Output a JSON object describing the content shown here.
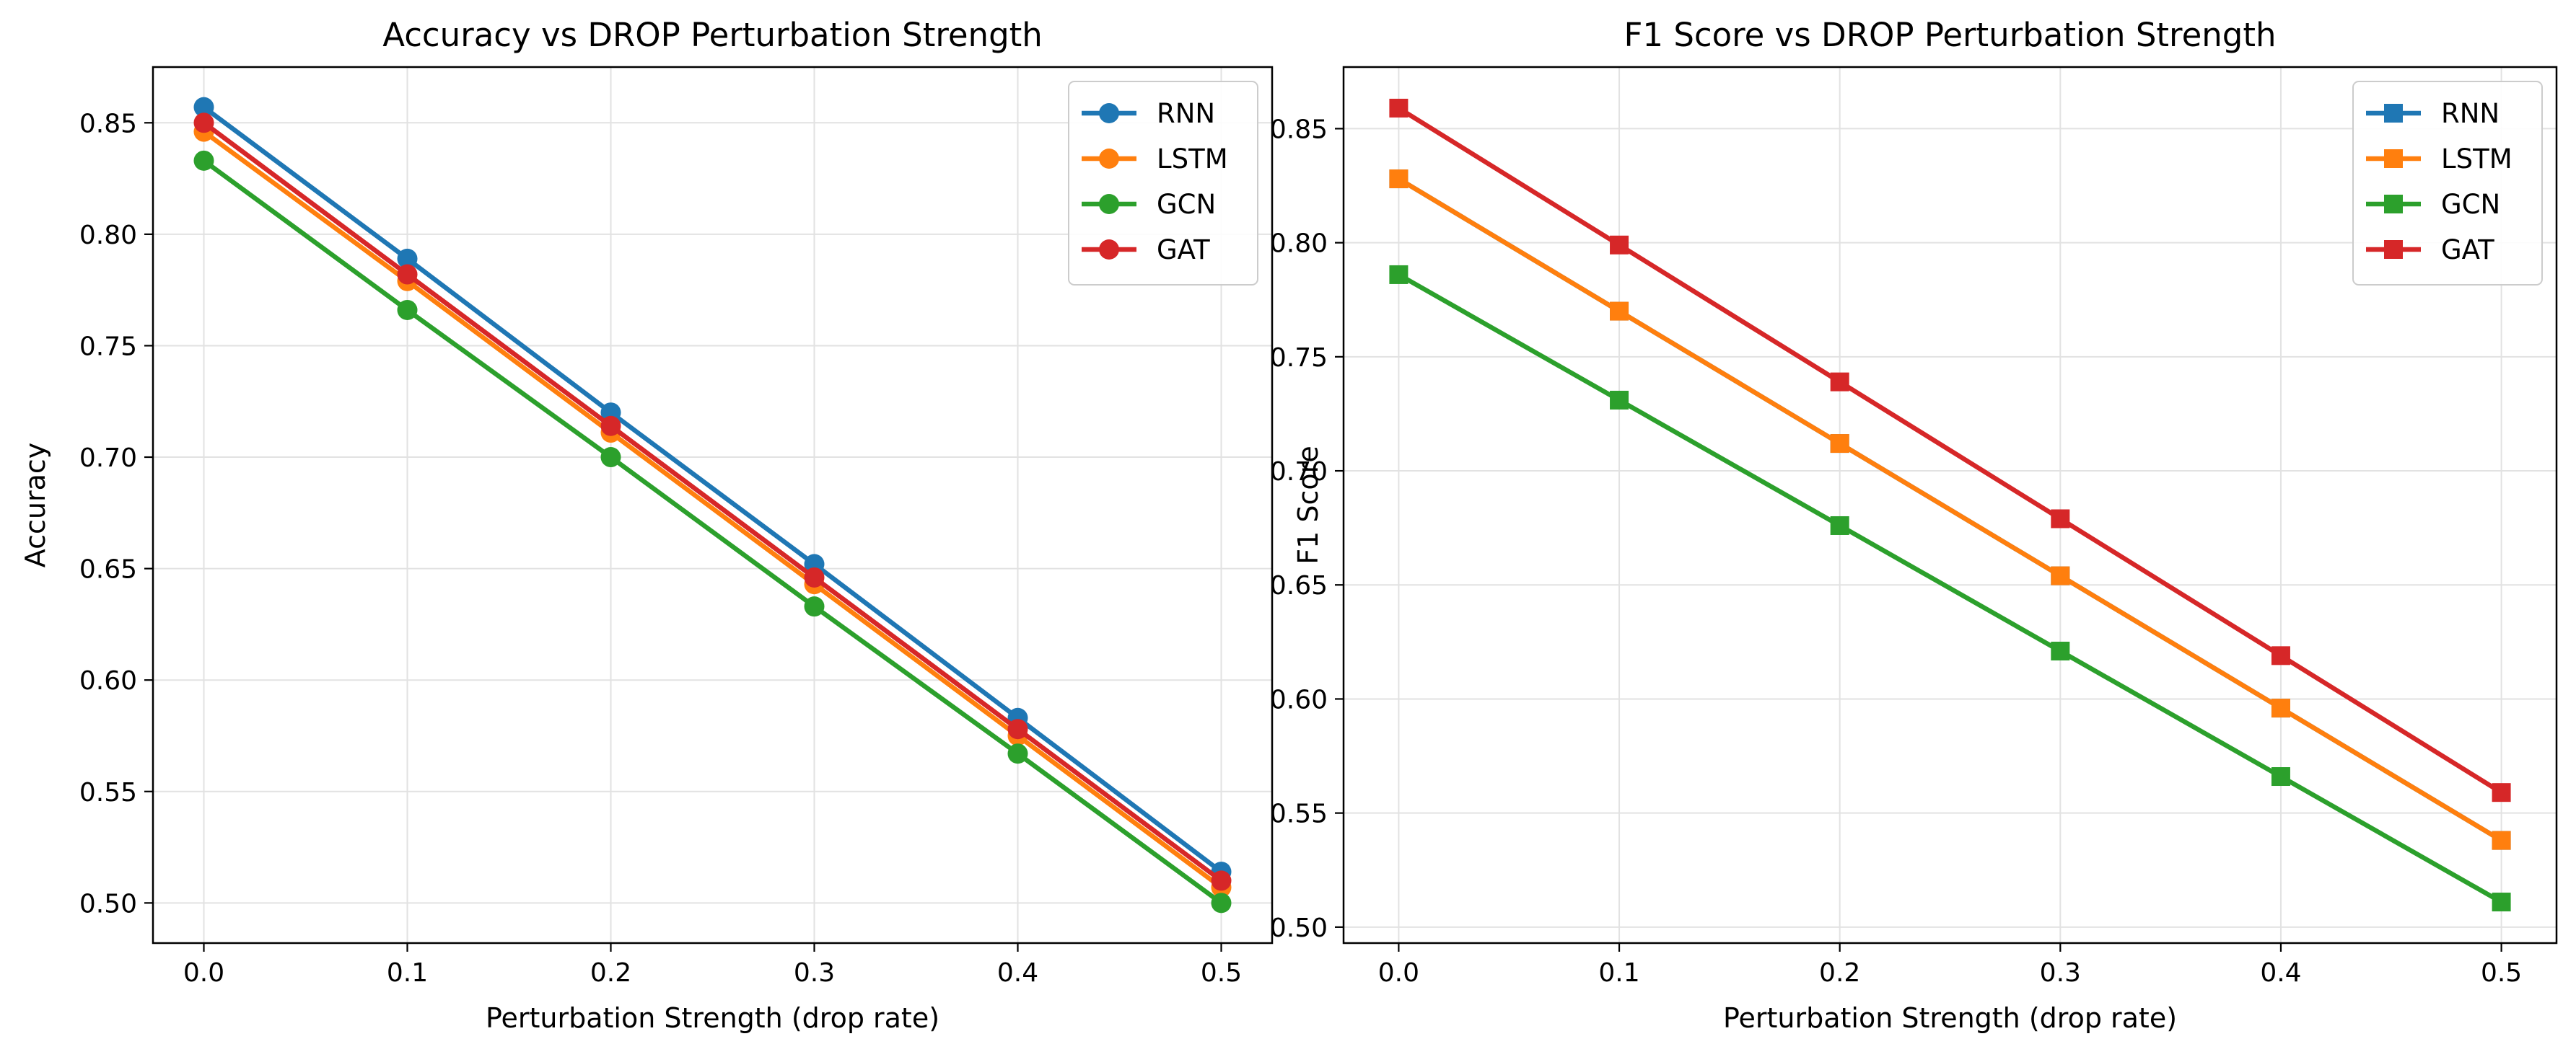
{
  "chart_data": [
    {
      "type": "line",
      "title": "Accuracy vs DROP Perturbation Strength",
      "xlabel": "Perturbation Strength (drop rate)",
      "ylabel": "Accuracy",
      "x": [
        0.0,
        0.1,
        0.2,
        0.3,
        0.4,
        0.5
      ],
      "xticks": [
        "0.0",
        "0.1",
        "0.2",
        "0.3",
        "0.4",
        "0.5"
      ],
      "yticks": [
        "0.50",
        "0.55",
        "0.60",
        "0.65",
        "0.70",
        "0.75",
        "0.80",
        "0.85"
      ],
      "xlim": [
        -0.025,
        0.525
      ],
      "ylim": [
        0.482,
        0.875
      ],
      "grid": true,
      "legend_position": "top-right",
      "marker": "circle",
      "series": [
        {
          "name": "RNN",
          "color": "#1f77b4",
          "values": [
            0.857,
            0.789,
            0.72,
            0.652,
            0.583,
            0.514
          ]
        },
        {
          "name": "LSTM",
          "color": "#ff7f0e",
          "values": [
            0.846,
            0.779,
            0.711,
            0.643,
            0.575,
            0.507
          ]
        },
        {
          "name": "GCN",
          "color": "#2ca02c",
          "values": [
            0.833,
            0.766,
            0.7,
            0.633,
            0.567,
            0.5
          ]
        },
        {
          "name": "GAT",
          "color": "#d62728",
          "values": [
            0.85,
            0.782,
            0.714,
            0.646,
            0.578,
            0.51
          ]
        }
      ]
    },
    {
      "type": "line",
      "title": "F1 Score vs DROP Perturbation Strength",
      "xlabel": "Perturbation Strength (drop rate)",
      "ylabel": "F1 Score",
      "x": [
        0.0,
        0.1,
        0.2,
        0.3,
        0.4,
        0.5
      ],
      "xticks": [
        "0.0",
        "0.1",
        "0.2",
        "0.3",
        "0.4",
        "0.5"
      ],
      "yticks": [
        "0.50",
        "0.55",
        "0.60",
        "0.65",
        "0.70",
        "0.75",
        "0.80",
        "0.85"
      ],
      "xlim": [
        -0.025,
        0.525
      ],
      "ylim": [
        0.493,
        0.877
      ],
      "grid": true,
      "legend_position": "top-right",
      "marker": "square",
      "series": [
        {
          "name": "RNN",
          "color": "#1f77b4",
          "values": [
            0.828,
            0.77,
            0.712,
            0.654,
            0.596,
            0.538
          ]
        },
        {
          "name": "LSTM",
          "color": "#ff7f0e",
          "values": [
            0.828,
            0.77,
            0.712,
            0.654,
            0.596,
            0.538
          ]
        },
        {
          "name": "GCN",
          "color": "#2ca02c",
          "values": [
            0.786,
            0.731,
            0.676,
            0.621,
            0.566,
            0.511
          ]
        },
        {
          "name": "GAT",
          "color": "#d62728",
          "values": [
            0.859,
            0.799,
            0.739,
            0.679,
            0.619,
            0.559
          ]
        }
      ]
    }
  ]
}
